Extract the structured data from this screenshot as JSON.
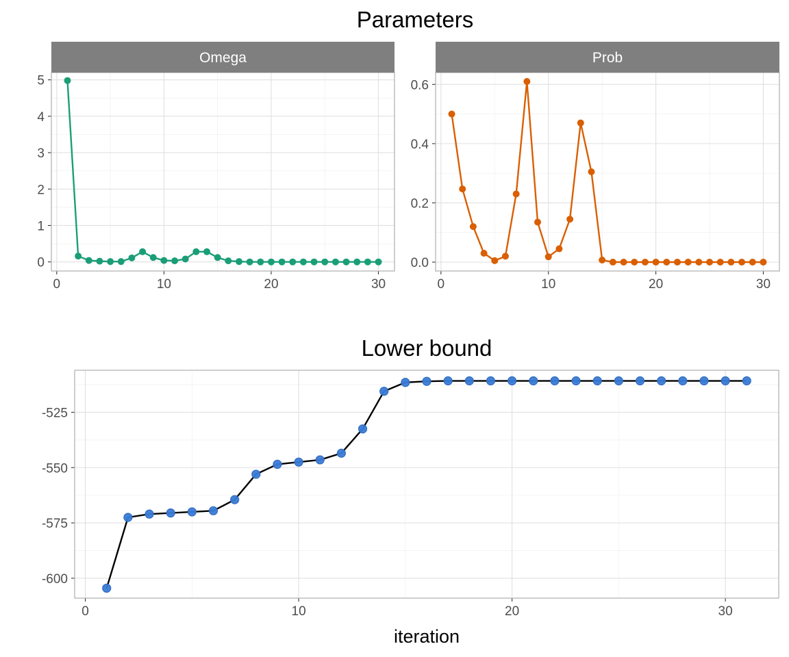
{
  "chart_data": [
    {
      "type": "line",
      "title": "Parameters",
      "facet": "Omega",
      "color": "#1b9e77",
      "xlim": [
        -0.5,
        31.5
      ],
      "ylim": [
        -0.25,
        5.2
      ],
      "xticks": [
        0,
        10,
        20,
        30
      ],
      "yticks": [
        0,
        1,
        2,
        3,
        4,
        5
      ],
      "x": [
        1,
        2,
        3,
        4,
        5,
        6,
        7,
        8,
        9,
        10,
        11,
        12,
        13,
        14,
        15,
        16,
        17,
        18,
        19,
        20,
        21,
        22,
        23,
        24,
        25,
        26,
        27,
        28,
        29,
        30
      ],
      "values": [
        4.98,
        0.16,
        0.04,
        0.02,
        0.01,
        0.01,
        0.11,
        0.28,
        0.12,
        0.04,
        0.03,
        0.08,
        0.28,
        0.28,
        0.12,
        0.03,
        0.01,
        0.0,
        0.0,
        0.0,
        0.0,
        0.0,
        0.0,
        0.0,
        0.0,
        0.0,
        0.0,
        0.0,
        0.0,
        0.0
      ]
    },
    {
      "type": "line",
      "facet": "Prob",
      "color": "#d95f02",
      "xlim": [
        -0.5,
        31.5
      ],
      "ylim": [
        -0.03,
        0.64
      ],
      "xticks": [
        0,
        10,
        20,
        30
      ],
      "yticks": [
        0.0,
        0.2,
        0.4,
        0.6
      ],
      "ytick_labels": [
        "0.0",
        "0.2",
        "0.4",
        "0.6"
      ],
      "x": [
        1,
        2,
        3,
        4,
        5,
        6,
        7,
        8,
        9,
        10,
        11,
        12,
        13,
        14,
        15,
        16,
        17,
        18,
        19,
        20,
        21,
        22,
        23,
        24,
        25,
        26,
        27,
        28,
        29,
        30
      ],
      "values": [
        0.5,
        0.247,
        0.12,
        0.03,
        0.005,
        0.02,
        0.23,
        0.61,
        0.135,
        0.018,
        0.045,
        0.145,
        0.47,
        0.305,
        0.007,
        0.0,
        0.0,
        0.0,
        0.0,
        0.0,
        0.0,
        0.0,
        0.0,
        0.0,
        0.0,
        0.0,
        0.0,
        0.0,
        0.0,
        0.0
      ]
    },
    {
      "type": "line",
      "title": "Lower bound",
      "xlabel": "iteration",
      "line_color": "#000000",
      "point_color": "#3a7bd5",
      "xlim": [
        -0.5,
        32.5
      ],
      "ylim": [
        -609,
        -506
      ],
      "xticks": [
        0,
        10,
        20,
        30
      ],
      "yticks": [
        -600,
        -575,
        -550,
        -525
      ],
      "x": [
        1,
        2,
        3,
        4,
        5,
        6,
        7,
        8,
        9,
        10,
        11,
        12,
        13,
        14,
        15,
        16,
        17,
        18,
        19,
        20,
        21,
        22,
        23,
        24,
        25,
        26,
        27,
        28,
        29,
        30,
        31
      ],
      "values": [
        -604.5,
        -572.5,
        -571,
        -570.5,
        -570,
        -569.5,
        -564.5,
        -553,
        -548.5,
        -547.5,
        -546.5,
        -543.5,
        -532.5,
        -515.5,
        -511.5,
        -511,
        -510.8,
        -510.8,
        -510.8,
        -510.8,
        -510.8,
        -510.8,
        -510.8,
        -510.8,
        -510.8,
        -510.8,
        -510.8,
        -510.8,
        -510.8,
        -510.8,
        -510.8
      ]
    }
  ]
}
